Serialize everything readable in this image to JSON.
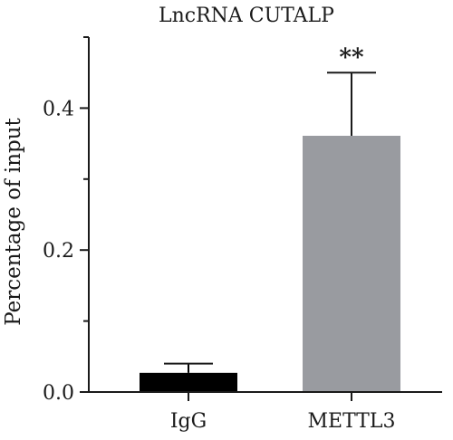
{
  "chart_data": {
    "type": "bar",
    "title": "LncRNA CUTALP",
    "xlabel": "",
    "ylabel": "Percentage of input",
    "categories": [
      "IgG",
      "METTL3"
    ],
    "values": [
      0.027,
      0.361
    ],
    "error_upper": [
      0.04,
      0.45
    ],
    "significance": [
      "",
      "**"
    ],
    "bar_colors": [
      "#000000",
      "#999ba0"
    ],
    "ylim": [
      0,
      0.5
    ],
    "yticks": [
      0.0,
      0.2,
      0.4
    ],
    "ytick_labels": [
      "0.0",
      "0.2",
      "0.4"
    ],
    "grid": false,
    "legend": "none"
  }
}
